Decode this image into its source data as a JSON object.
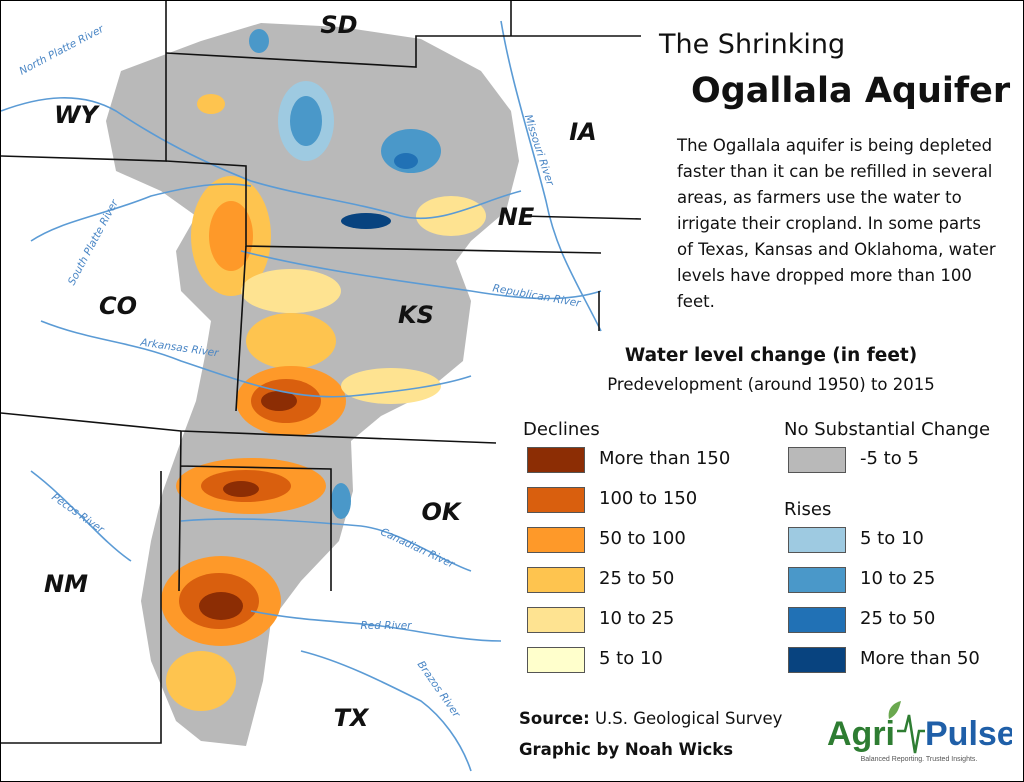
{
  "title": {
    "line1": "The Shrinking",
    "line2": "Ogallala Aquifer"
  },
  "description": "The Ogallala aquifer is being depleted faster than it can be refilled in several areas, as farmers use the water to irrigate their cropland. In some parts of Texas, Kansas and Oklahoma, water levels have dropped more than 100 feet.",
  "legend": {
    "title": "Water level change (in feet)",
    "subtitle": "Predevelopment (around 1950) to 2015",
    "declines": {
      "heading": "Declines",
      "items": [
        {
          "label": "More than 150",
          "color": "#8c2d04"
        },
        {
          "label": "100 to 150",
          "color": "#d95f0e"
        },
        {
          "label": "50 to 100",
          "color": "#fe9929"
        },
        {
          "label": "25 to 50",
          "color": "#fec44f"
        },
        {
          "label": "10 to 25",
          "color": "#fee391"
        },
        {
          "label": "5 to 10",
          "color": "#ffffcc"
        }
      ]
    },
    "no_change": {
      "heading": "No Substantial Change",
      "items": [
        {
          "label": "-5 to 5",
          "color": "#b9b9b9"
        }
      ]
    },
    "rises": {
      "heading": "Rises",
      "items": [
        {
          "label": "5 to 10",
          "color": "#9ecae1"
        },
        {
          "label": "10 to 25",
          "color": "#4a98c9"
        },
        {
          "label": "25 to 50",
          "color": "#2171b5"
        },
        {
          "label": "More than 50",
          "color": "#08437f"
        }
      ]
    }
  },
  "states": [
    "SD",
    "WY",
    "IA",
    "NE",
    "CO",
    "KS",
    "OK",
    "NM",
    "TX"
  ],
  "rivers": [
    "North Platte River",
    "South Platte River",
    "Missouri River",
    "Republican River",
    "Arkansas River",
    "Canadian River",
    "Pecos River",
    "Red River",
    "Brazos River"
  ],
  "source": {
    "label": "Source:",
    "text": "U.S. Geological Survey"
  },
  "credit": "Graphic by Noah Wicks",
  "logo": {
    "agri": "Agri",
    "pulse": "Pulse",
    "tagline": "Balanced Reporting. Trusted Insights."
  }
}
